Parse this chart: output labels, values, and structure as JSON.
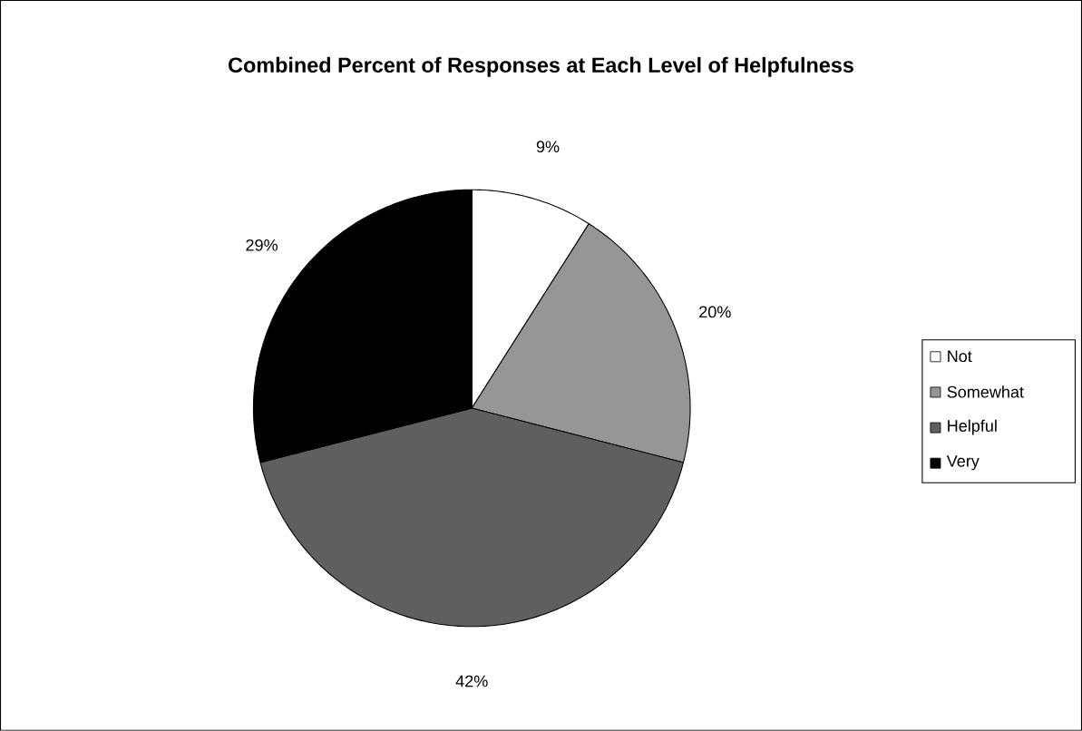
{
  "chart_data": {
    "type": "pie",
    "title": "Combined Percent of Responses at Each Level of Helpfulness",
    "categories": [
      "Not",
      "Somewhat",
      "Helpful",
      "Very"
    ],
    "values": [
      9,
      20,
      42,
      29
    ],
    "colors": [
      "#ffffff",
      "#969696",
      "#5f5f5f",
      "#000000"
    ],
    "value_labels": [
      "9%",
      "20%",
      "42%",
      "29%"
    ],
    "legend": "right"
  }
}
